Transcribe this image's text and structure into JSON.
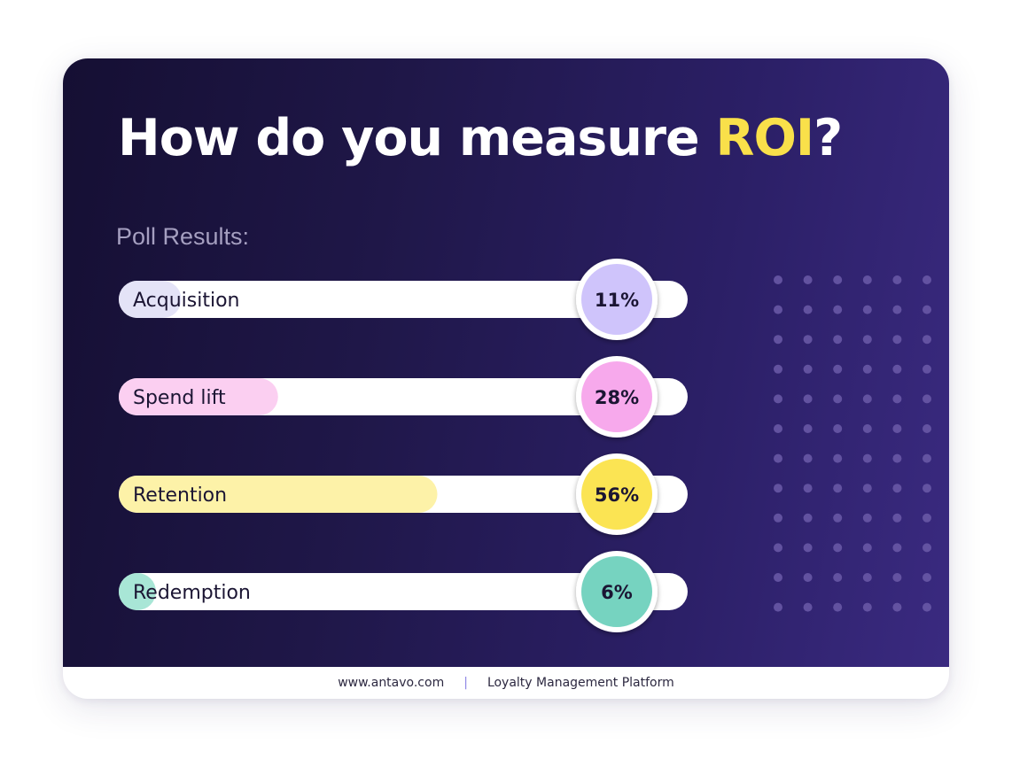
{
  "header": {
    "title_main": "How do you measure ",
    "title_highlight": "ROI",
    "title_end": "?",
    "subtitle": "Poll Results:"
  },
  "footer": {
    "website": "www.antavo.com",
    "separator": "|",
    "tagline": "Loyalty Management Platform"
  },
  "colors": {
    "highlight": "#f9e04a",
    "track": "#ffffff",
    "background_start": "#150f33",
    "background_end": "#3a2a80"
  },
  "chart_data": {
    "type": "bar",
    "orientation": "horizontal",
    "categories": [
      "Acquisition",
      "Spend lift",
      "Retention",
      "Redemption"
    ],
    "values": [
      11,
      28,
      56,
      6
    ],
    "value_labels": [
      "11%",
      "28%",
      "56%",
      "6%"
    ],
    "unit": "%",
    "xlim": [
      0,
      100
    ],
    "colors": {
      "fill": [
        "#e4e3f7",
        "#fbcff1",
        "#fdf2a8",
        "#a8e6d6"
      ],
      "badge": [
        "#cfc4fb",
        "#f7a9ec",
        "#fbe453",
        "#76d3c0"
      ]
    },
    "grid": false,
    "legend": "none"
  }
}
